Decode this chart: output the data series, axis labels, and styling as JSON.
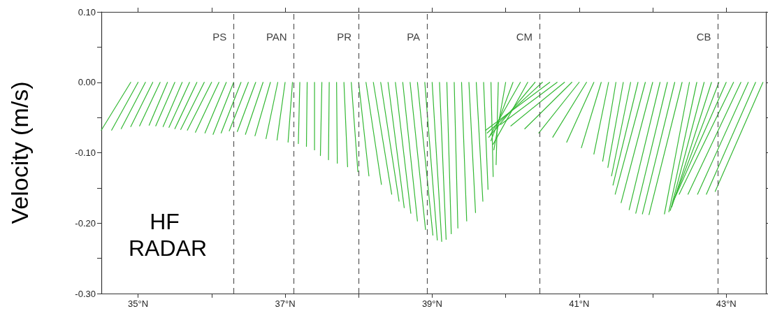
{
  "chart_data": {
    "type": "line",
    "ylabel": "Velocity (m/s)",
    "annotations": [
      "HF RADAR"
    ],
    "xlim": [
      34.5,
      43.54
    ],
    "xticks": [
      {
        "value": 35,
        "label": "35°N"
      },
      {
        "value": 36,
        "label": null
      },
      {
        "value": 37,
        "label": "37°N"
      },
      {
        "value": 38,
        "label": null
      },
      {
        "value": 39,
        "label": "39°N"
      },
      {
        "value": 40,
        "label": null
      },
      {
        "value": 41,
        "label": "41°N"
      },
      {
        "value": 42,
        "label": null
      },
      {
        "value": 43,
        "label": "43°N"
      }
    ],
    "ylim": [
      -0.3,
      0.1
    ],
    "yticks": [
      {
        "value": 0.1,
        "label": "0.10"
      },
      {
        "value": 0.05,
        "label": null
      },
      {
        "value": 0,
        "label": "0.00"
      },
      {
        "value": -0.05,
        "label": null
      },
      {
        "value": -0.1,
        "label": "-0.10"
      },
      {
        "value": -0.15,
        "label": null
      },
      {
        "value": -0.2,
        "label": "-0.20"
      },
      {
        "value": -0.25,
        "label": null
      },
      {
        "value": -0.3,
        "label": "-0.30"
      }
    ],
    "grid": false,
    "marker": "none",
    "line_style": "solid",
    "ref_lines": [
      {
        "axis": "x",
        "value": 36.3,
        "label": "PS",
        "color": "#555555",
        "line_style": "dashed"
      },
      {
        "axis": "x",
        "value": 37.12,
        "label": "PAN",
        "color": "#555555",
        "line_style": "dashed"
      },
      {
        "axis": "x",
        "value": 38.0,
        "label": "PR",
        "color": "#555555",
        "line_style": "dashed"
      },
      {
        "axis": "x",
        "value": 38.93,
        "label": "PA",
        "color": "#555555",
        "line_style": "dashed"
      },
      {
        "axis": "x",
        "value": 40.46,
        "label": "CM",
        "color": "#555555",
        "line_style": "dashed"
      },
      {
        "axis": "x",
        "value": 42.89,
        "label": "CB",
        "color": "#555555",
        "line_style": "dashed"
      }
    ],
    "series": [
      {
        "color": "#33b833",
        "x": [
          34.9,
          34.5
        ],
        "values": [
          0,
          -0.068
        ]
      },
      {
        "color": "#33b833",
        "x": [
          35.0,
          34.64
        ],
        "values": [
          0,
          -0.068
        ]
      },
      {
        "color": "#33b833",
        "x": [
          35.1,
          34.77
        ],
        "values": [
          0,
          -0.066
        ]
      },
      {
        "color": "#33b833",
        "x": [
          35.2,
          34.9
        ],
        "values": [
          0,
          -0.063
        ]
      },
      {
        "color": "#33b833",
        "x": [
          35.3,
          35.02
        ],
        "values": [
          0,
          -0.062
        ]
      },
      {
        "color": "#33b833",
        "x": [
          35.4,
          35.15
        ],
        "values": [
          0,
          -0.061
        ]
      },
      {
        "color": "#33b833",
        "x": [
          35.5,
          35.24
        ],
        "values": [
          0,
          -0.062
        ]
      },
      {
        "color": "#33b833",
        "x": [
          35.6,
          35.34
        ],
        "values": [
          0,
          -0.063
        ]
      },
      {
        "color": "#33b833",
        "x": [
          35.7,
          35.42
        ],
        "values": [
          0,
          -0.064
        ]
      },
      {
        "color": "#33b833",
        "x": [
          35.8,
          35.5
        ],
        "values": [
          0,
          -0.066
        ]
      },
      {
        "color": "#33b833",
        "x": [
          35.9,
          35.58
        ],
        "values": [
          0,
          -0.067
        ]
      },
      {
        "color": "#33b833",
        "x": [
          36.0,
          35.67
        ],
        "values": [
          0,
          -0.068
        ]
      },
      {
        "color": "#33b833",
        "x": [
          36.1,
          35.78
        ],
        "values": [
          0,
          -0.071
        ]
      },
      {
        "color": "#33b833",
        "x": [
          36.2,
          35.91
        ],
        "values": [
          0,
          -0.072
        ]
      },
      {
        "color": "#33b833",
        "x": [
          36.3,
          36.02
        ],
        "values": [
          0,
          -0.074
        ]
      },
      {
        "color": "#33b833",
        "x": [
          36.4,
          36.13
        ],
        "values": [
          0,
          -0.072
        ]
      },
      {
        "color": "#33b833",
        "x": [
          36.5,
          36.24
        ],
        "values": [
          0,
          -0.069
        ]
      },
      {
        "color": "#33b833",
        "x": [
          36.6,
          36.35
        ],
        "values": [
          0,
          -0.07
        ]
      },
      {
        "color": "#33b833",
        "x": [
          36.7,
          36.46
        ],
        "values": [
          0,
          -0.074
        ]
      },
      {
        "color": "#33b833",
        "x": [
          36.8,
          36.59
        ],
        "values": [
          0,
          -0.076
        ]
      },
      {
        "color": "#33b833",
        "x": [
          36.9,
          36.74
        ],
        "values": [
          0,
          -0.08
        ]
      },
      {
        "color": "#33b833",
        "x": [
          37.0,
          36.89
        ],
        "values": [
          0,
          -0.082
        ]
      },
      {
        "color": "#33b833",
        "x": [
          37.1,
          37.04
        ],
        "values": [
          0,
          -0.085
        ]
      },
      {
        "color": "#33b833",
        "x": [
          37.2,
          37.18
        ],
        "values": [
          0,
          -0.087
        ]
      },
      {
        "color": "#33b833",
        "x": [
          37.3,
          37.29
        ],
        "values": [
          0,
          -0.091
        ]
      },
      {
        "color": "#33b833",
        "x": [
          37.4,
          37.4
        ],
        "values": [
          0,
          -0.096
        ]
      },
      {
        "color": "#33b833",
        "x": [
          37.5,
          37.48
        ],
        "values": [
          0,
          -0.104
        ]
      },
      {
        "color": "#33b833",
        "x": [
          37.6,
          37.59
        ],
        "values": [
          0,
          -0.11
        ]
      },
      {
        "color": "#33b833",
        "x": [
          37.7,
          37.71
        ],
        "values": [
          0,
          -0.115
        ]
      },
      {
        "color": "#33b833",
        "x": [
          37.8,
          37.85
        ],
        "values": [
          0,
          -0.12
        ]
      },
      {
        "color": "#33b833",
        "x": [
          37.9,
          37.99
        ],
        "values": [
          0,
          -0.127
        ]
      },
      {
        "color": "#33b833",
        "x": [
          38.0,
          38.14
        ],
        "values": [
          0,
          -0.133
        ]
      },
      {
        "color": "#33b833",
        "x": [
          38.1,
          38.31
        ],
        "values": [
          0,
          -0.145
        ]
      },
      {
        "color": "#33b833",
        "x": [
          38.2,
          38.45
        ],
        "values": [
          0,
          -0.159
        ]
      },
      {
        "color": "#33b833",
        "x": [
          38.3,
          38.55
        ],
        "values": [
          0,
          -0.169
        ]
      },
      {
        "color": "#33b833",
        "x": [
          38.4,
          38.62
        ],
        "values": [
          0,
          -0.178
        ]
      },
      {
        "color": "#33b833",
        "x": [
          38.5,
          38.71
        ],
        "values": [
          0,
          -0.186
        ]
      },
      {
        "color": "#33b833",
        "x": [
          38.6,
          38.8
        ],
        "values": [
          0,
          -0.197
        ]
      },
      {
        "color": "#33b833",
        "x": [
          38.7,
          38.91
        ],
        "values": [
          0,
          -0.209
        ]
      },
      {
        "color": "#33b833",
        "x": [
          38.8,
          39.01
        ],
        "values": [
          0,
          -0.217
        ]
      },
      {
        "color": "#33b833",
        "x": [
          38.9,
          39.07
        ],
        "values": [
          0,
          -0.224
        ]
      },
      {
        "color": "#33b833",
        "x": [
          39.0,
          39.13
        ],
        "values": [
          0,
          -0.226
        ]
      },
      {
        "color": "#33b833",
        "x": [
          39.1,
          39.19
        ],
        "values": [
          0,
          -0.223
        ]
      },
      {
        "color": "#33b833",
        "x": [
          39.2,
          39.26
        ],
        "values": [
          0,
          -0.215
        ]
      },
      {
        "color": "#33b833",
        "x": [
          39.3,
          39.35
        ],
        "values": [
          0,
          -0.207
        ]
      },
      {
        "color": "#33b833",
        "x": [
          39.4,
          39.47
        ],
        "values": [
          0,
          -0.197
        ]
      },
      {
        "color": "#33b833",
        "x": [
          39.5,
          39.59
        ],
        "values": [
          0,
          -0.185
        ]
      },
      {
        "color": "#33b833",
        "x": [
          39.6,
          39.69
        ],
        "values": [
          0,
          -0.169
        ]
      },
      {
        "color": "#33b833",
        "x": [
          39.7,
          39.76
        ],
        "values": [
          0,
          -0.152
        ]
      },
      {
        "color": "#33b833",
        "x": [
          39.8,
          39.83
        ],
        "values": [
          0,
          -0.134
        ]
      },
      {
        "color": "#33b833",
        "x": [
          39.9,
          39.87
        ],
        "values": [
          0,
          -0.117
        ]
      },
      {
        "color": "#33b833",
        "x": [
          40.0,
          39.84
        ],
        "values": [
          0,
          -0.096
        ]
      },
      {
        "color": "#33b833",
        "x": [
          40.1,
          39.8
        ],
        "values": [
          0,
          -0.083
        ]
      },
      {
        "color": "#33b833",
        "x": [
          40.2,
          39.79
        ],
        "values": [
          0,
          -0.075
        ]
      },
      {
        "color": "#33b833",
        "x": [
          40.3,
          39.83
        ],
        "values": [
          0,
          -0.088
        ]
      },
      {
        "color": "#33b833",
        "x": [
          40.4,
          39.77
        ],
        "values": [
          0,
          -0.078
        ]
      },
      {
        "color": "#33b833",
        "x": [
          40.5,
          39.75
        ],
        "values": [
          0,
          -0.072
        ]
      },
      {
        "color": "#33b833",
        "x": [
          40.6,
          39.73
        ],
        "values": [
          0,
          -0.068
        ]
      },
      {
        "color": "#33b833",
        "x": [
          40.7,
          39.93
        ],
        "values": [
          0,
          -0.06
        ]
      },
      {
        "color": "#33b833",
        "x": [
          40.8,
          40.07
        ],
        "values": [
          0,
          -0.062
        ]
      },
      {
        "color": "#33b833",
        "x": [
          40.9,
          40.26
        ],
        "values": [
          0,
          -0.066
        ]
      },
      {
        "color": "#33b833",
        "x": [
          41.0,
          40.45
        ],
        "values": [
          0,
          -0.072
        ]
      },
      {
        "color": "#33b833",
        "x": [
          41.1,
          40.64
        ],
        "values": [
          0,
          -0.078
        ]
      },
      {
        "color": "#33b833",
        "x": [
          41.2,
          40.83
        ],
        "values": [
          0,
          -0.085
        ]
      },
      {
        "color": "#33b833",
        "x": [
          41.3,
          41.03
        ],
        "values": [
          0,
          -0.093
        ]
      },
      {
        "color": "#33b833",
        "x": [
          41.4,
          41.2
        ],
        "values": [
          0,
          -0.102
        ]
      },
      {
        "color": "#33b833",
        "x": [
          41.5,
          41.32
        ],
        "values": [
          0,
          -0.112
        ]
      },
      {
        "color": "#33b833",
        "x": [
          41.6,
          41.39
        ],
        "values": [
          0,
          -0.121
        ]
      },
      {
        "color": "#33b833",
        "x": [
          41.7,
          41.44
        ],
        "values": [
          0,
          -0.133
        ]
      },
      {
        "color": "#33b833",
        "x": [
          41.8,
          41.46
        ],
        "values": [
          0,
          -0.146
        ]
      },
      {
        "color": "#33b833",
        "x": [
          41.9,
          41.49
        ],
        "values": [
          0,
          -0.159
        ]
      },
      {
        "color": "#33b833",
        "x": [
          42.0,
          41.57
        ],
        "values": [
          0,
          -0.171
        ]
      },
      {
        "color": "#33b833",
        "x": [
          42.1,
          41.68
        ],
        "values": [
          0,
          -0.181
        ]
      },
      {
        "color": "#33b833",
        "x": [
          42.2,
          41.77
        ],
        "values": [
          0,
          -0.186
        ]
      },
      {
        "color": "#33b833",
        "x": [
          42.3,
          41.86
        ],
        "values": [
          0,
          -0.187
        ]
      },
      {
        "color": "#33b833",
        "x": [
          42.4,
          41.95
        ],
        "values": [
          0,
          -0.188
        ]
      },
      {
        "color": "#33b833",
        "x": [
          42.5,
          42.16
        ],
        "values": [
          0,
          -0.187
        ]
      },
      {
        "color": "#33b833",
        "x": [
          42.6,
          42.22
        ],
        "values": [
          0,
          -0.184
        ]
      },
      {
        "color": "#33b833",
        "x": [
          42.7,
          42.24
        ],
        "values": [
          0,
          -0.182
        ]
      },
      {
        "color": "#33b833",
        "x": [
          42.8,
          42.26
        ],
        "values": [
          0,
          -0.177
        ]
      },
      {
        "color": "#33b833",
        "x": [
          42.9,
          42.27
        ],
        "values": [
          0,
          -0.172
        ]
      },
      {
        "color": "#33b833",
        "x": [
          43.0,
          42.29
        ],
        "values": [
          0,
          -0.167
        ]
      },
      {
        "color": "#33b833",
        "x": [
          43.1,
          42.36
        ],
        "values": [
          0,
          -0.159
        ]
      },
      {
        "color": "#33b833",
        "x": [
          43.2,
          42.48
        ],
        "values": [
          0,
          -0.159
        ]
      },
      {
        "color": "#33b833",
        "x": [
          43.3,
          42.61
        ],
        "values": [
          0,
          -0.159
        ]
      },
      {
        "color": "#33b833",
        "x": [
          43.4,
          42.73
        ],
        "values": [
          0,
          -0.159
        ]
      },
      {
        "color": "#33b833",
        "x": [
          43.5,
          42.85
        ],
        "values": [
          0,
          -0.155
        ]
      }
    ]
  }
}
